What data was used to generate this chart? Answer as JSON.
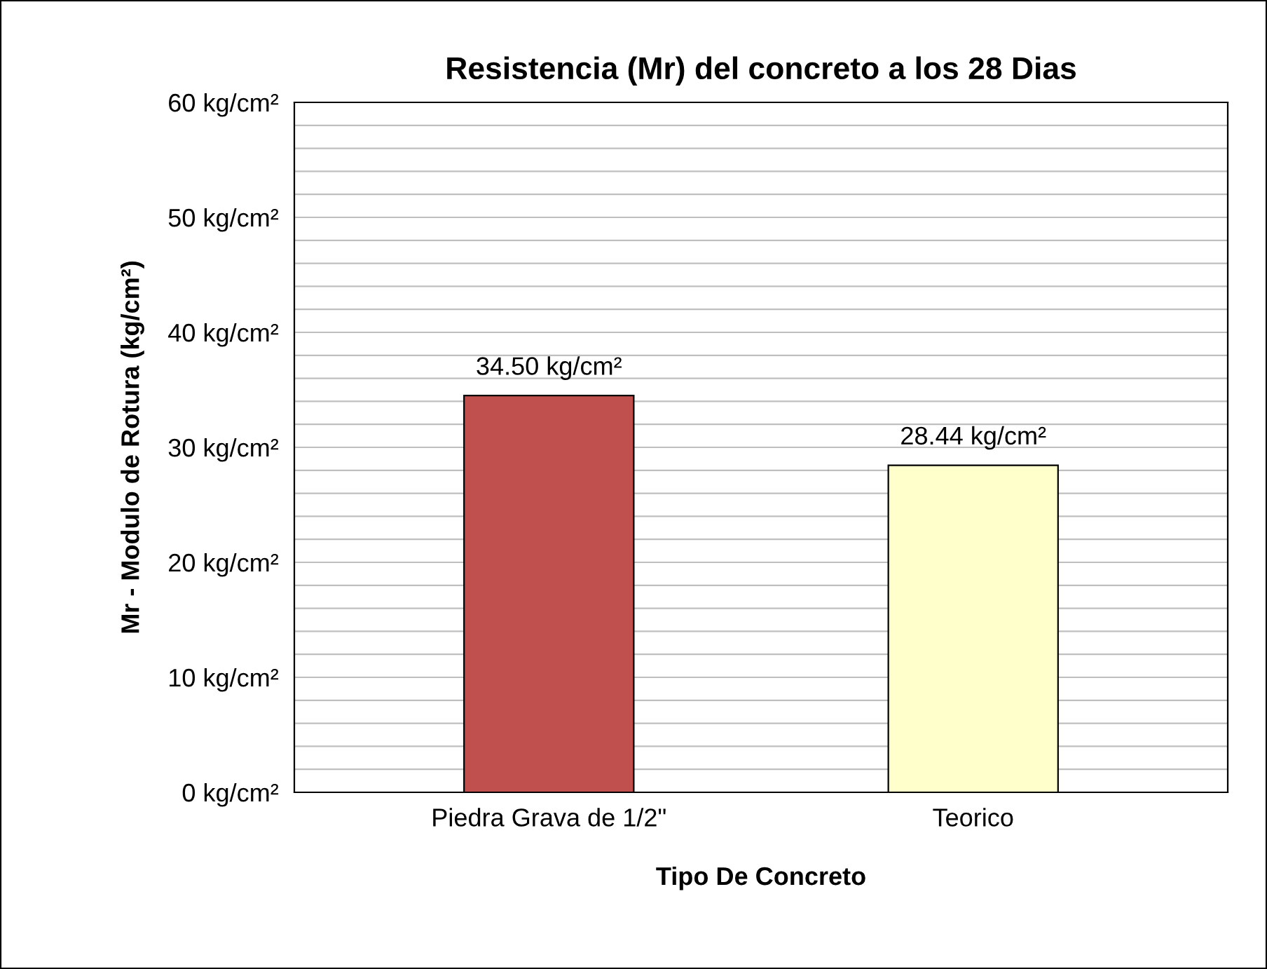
{
  "chart_data": {
    "type": "bar",
    "title": "Resistencia (Mr) del concreto a los 28 Dias",
    "xlabel": "Tipo De Concreto",
    "ylabel": "Mr - Modulo de Rotura (kg/cm²)",
    "categories": [
      "Piedra Grava de 1/2\"",
      "Teorico"
    ],
    "values": [
      34.5,
      28.44
    ],
    "colors": [
      "#c0504d",
      "#ffffcc"
    ],
    "value_labels": [
      "34.50 kg/cm²",
      "28.44 kg/cm²"
    ],
    "ylim": [
      0,
      60
    ],
    "yticks": [
      {
        "value": 0,
        "label": "0 kg/cm²"
      },
      {
        "value": 2,
        "label": null
      },
      {
        "value": 4,
        "label": null
      },
      {
        "value": 6,
        "label": null
      },
      {
        "value": 8,
        "label": null
      },
      {
        "value": 10,
        "label": "10 kg/cm²"
      },
      {
        "value": 12,
        "label": null
      },
      {
        "value": 14,
        "label": null
      },
      {
        "value": 16,
        "label": null
      },
      {
        "value": 18,
        "label": null
      },
      {
        "value": 20,
        "label": "20 kg/cm²"
      },
      {
        "value": 22,
        "label": null
      },
      {
        "value": 24,
        "label": null
      },
      {
        "value": 26,
        "label": null
      },
      {
        "value": 28,
        "label": null
      },
      {
        "value": 30,
        "label": "30 kg/cm²"
      },
      {
        "value": 32,
        "label": null
      },
      {
        "value": 34,
        "label": null
      },
      {
        "value": 36,
        "label": null
      },
      {
        "value": 38,
        "label": null
      },
      {
        "value": 40,
        "label": "40 kg/cm²"
      },
      {
        "value": 42,
        "label": null
      },
      {
        "value": 44,
        "label": null
      },
      {
        "value": 46,
        "label": null
      },
      {
        "value": 48,
        "label": null
      },
      {
        "value": 50,
        "label": "50 kg/cm²"
      },
      {
        "value": 52,
        "label": null
      },
      {
        "value": 54,
        "label": null
      },
      {
        "value": 56,
        "label": null
      },
      {
        "value": 58,
        "label": null
      },
      {
        "value": 60,
        "label": "60 kg/cm²"
      }
    ],
    "grid": "y",
    "legend": false
  }
}
